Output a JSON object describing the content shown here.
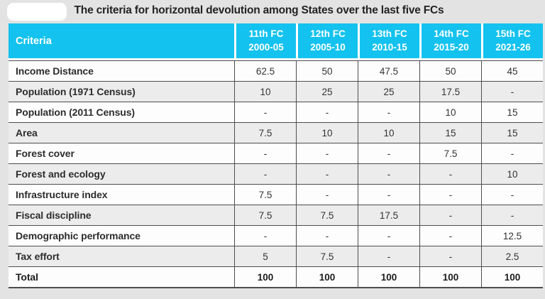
{
  "title": "The criteria for horizontal devolution among States over the last five FCs",
  "colors": {
    "header_bg": "#13c2ee",
    "header_text": "#ffffff",
    "row_alt_bg": "#ececec",
    "row_bg": "#fdfdfd",
    "border": "#4d4d4d",
    "page_bg": "#e3e3e3"
  },
  "chart_data": {
    "type": "table",
    "title": "The criteria for horizontal devolution among States over the last five FCs",
    "header": {
      "criteria": "Criteria",
      "columns": [
        {
          "fc": "11th FC",
          "years": "2000-05"
        },
        {
          "fc": "12th FC",
          "years": "2005-10"
        },
        {
          "fc": "13th FC",
          "years": "2010-15"
        },
        {
          "fc": "14th FC",
          "years": "2015-20"
        },
        {
          "fc": "15th FC",
          "years": "2021-26"
        }
      ]
    },
    "rows": [
      {
        "label": "Income Distance",
        "values": [
          "62.5",
          "50",
          "47.5",
          "50",
          "45"
        ]
      },
      {
        "label": "Population (1971 Census)",
        "values": [
          "10",
          "25",
          "25",
          "17.5",
          "-"
        ]
      },
      {
        "label": "Population (2011 Census)",
        "values": [
          "-",
          "-",
          "-",
          "10",
          "15"
        ]
      },
      {
        "label": "Area",
        "values": [
          "7.5",
          "10",
          "10",
          "15",
          "15"
        ]
      },
      {
        "label": "Forest cover",
        "values": [
          "-",
          "-",
          "-",
          "7.5",
          "-"
        ]
      },
      {
        "label": "Forest and ecology",
        "values": [
          "-",
          "-",
          "-",
          "-",
          "10"
        ]
      },
      {
        "label": "Infrastructure index",
        "values": [
          "7.5",
          "-",
          "-",
          "-",
          "-"
        ]
      },
      {
        "label": "Fiscal discipline",
        "values": [
          "7.5",
          "7.5",
          "17.5",
          "-",
          "-"
        ]
      },
      {
        "label": "Demographic performance",
        "values": [
          "-",
          "-",
          "-",
          "-",
          "12.5"
        ]
      },
      {
        "label": "Tax effort",
        "values": [
          "5",
          "7.5",
          "-",
          "-",
          "2.5"
        ]
      },
      {
        "label": "Total",
        "values": [
          "100",
          "100",
          "100",
          "100",
          "100"
        ],
        "total": true
      }
    ]
  }
}
